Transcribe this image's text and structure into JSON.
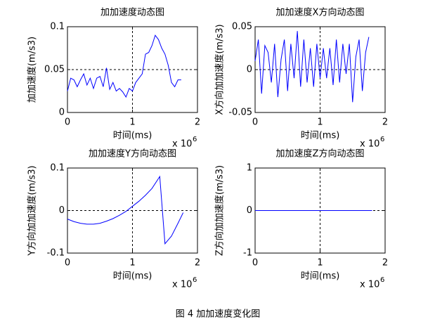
{
  "chart_data": [
    {
      "type": "line",
      "title": "加加速度动态图",
      "x_label": "时间(ms)",
      "y_label": "加加速度(m/s3)",
      "x_multiplier": {
        "base": "x 10",
        "exponent": "6"
      },
      "x": [
        0,
        0.05,
        0.1,
        0.15,
        0.2,
        0.25,
        0.3,
        0.35,
        0.4,
        0.45,
        0.5,
        0.55,
        0.6,
        0.65,
        0.7,
        0.75,
        0.8,
        0.85,
        0.9,
        0.95,
        1.0,
        1.05,
        1.1,
        1.15,
        1.2,
        1.25,
        1.3,
        1.35,
        1.4,
        1.45,
        1.5,
        1.55,
        1.6,
        1.65,
        1.7,
        1.75
      ],
      "series": [
        {
          "color": "#0000ff",
          "values": [
            0.025,
            0.04,
            0.038,
            0.03,
            0.038,
            0.045,
            0.032,
            0.04,
            0.028,
            0.04,
            0.042,
            0.03,
            0.052,
            0.027,
            0.035,
            0.025,
            0.028,
            0.024,
            0.018,
            0.028,
            0.025,
            0.035,
            0.04,
            0.045,
            0.068,
            0.07,
            0.078,
            0.09,
            0.085,
            0.075,
            0.068,
            0.055,
            0.035,
            0.03,
            0.038,
            0.038
          ]
        }
      ],
      "xlim": [
        0,
        2
      ],
      "xticks": [
        0,
        1,
        2
      ],
      "ylim": [
        0,
        0.1
      ],
      "yticks": [
        0,
        0.05,
        0.1
      ],
      "ref_x": 1,
      "ref_y": 0.05
    },
    {
      "type": "line",
      "title": "加加速度X方向动态图",
      "x_label": "时间(ms)",
      "y_label": "X方向加加速度(m/s3)",
      "x_multiplier": {
        "base": "x 10",
        "exponent": "6"
      },
      "x": [
        0,
        0.05,
        0.1,
        0.15,
        0.2,
        0.25,
        0.3,
        0.35,
        0.4,
        0.45,
        0.5,
        0.55,
        0.6,
        0.65,
        0.7,
        0.75,
        0.8,
        0.85,
        0.9,
        0.95,
        1.0,
        1.05,
        1.1,
        1.15,
        1.2,
        1.25,
        1.3,
        1.35,
        1.4,
        1.45,
        1.5,
        1.55,
        1.6,
        1.65,
        1.7,
        1.75
      ],
      "series": [
        {
          "color": "#0000ff",
          "values": [
            0.01,
            0.035,
            -0.028,
            0.028,
            0.02,
            -0.015,
            0.03,
            -0.032,
            0.012,
            0.035,
            -0.025,
            0.03,
            -0.01,
            0.045,
            -0.02,
            0.035,
            -0.015,
            0.025,
            -0.02,
            0.03,
            -0.01,
            0.025,
            -0.01,
            0.025,
            -0.018,
            0.035,
            -0.015,
            0.03,
            -0.005,
            0.03,
            -0.038,
            0.015,
            0.035,
            -0.025,
            0.02,
            0.038
          ]
        }
      ],
      "xlim": [
        0,
        2
      ],
      "xticks": [
        0,
        1,
        2
      ],
      "ylim": [
        -0.05,
        0.05
      ],
      "yticks": [
        -0.05,
        0,
        0.05
      ],
      "ref_x": 1,
      "ref_y": 0
    },
    {
      "type": "line",
      "title": "加加速度Y方向动态图",
      "x_label": "时间(ms)",
      "y_label": "Y方向加加速度(m/s3)",
      "x_multiplier": {
        "base": "x 10",
        "exponent": "6"
      },
      "x": [
        0,
        0.1,
        0.2,
        0.3,
        0.4,
        0.5,
        0.6,
        0.7,
        0.8,
        0.9,
        1.0,
        1.1,
        1.2,
        1.3,
        1.42,
        1.5,
        1.6,
        1.7,
        1.78
      ],
      "series": [
        {
          "color": "#0000ff",
          "values": [
            -0.02,
            -0.026,
            -0.03,
            -0.032,
            -0.032,
            -0.03,
            -0.025,
            -0.019,
            -0.011,
            -0.002,
            0.01,
            0.022,
            0.036,
            0.052,
            0.08,
            -0.078,
            -0.06,
            -0.03,
            -0.005
          ]
        }
      ],
      "xlim": [
        0,
        2
      ],
      "xticks": [
        0,
        1,
        2
      ],
      "ylim": [
        -0.1,
        0.1
      ],
      "yticks": [
        -0.1,
        0,
        0.1
      ],
      "ref_x": 1,
      "ref_y": 0
    },
    {
      "type": "line",
      "title": "加加速度Z方向动态图",
      "x_label": "时间(ms)",
      "y_label": "Z方向加加速度(m/s3)",
      "x_multiplier": {
        "base": "x 10",
        "exponent": "6"
      },
      "x": [
        0,
        1.8
      ],
      "series": [
        {
          "color": "#0000ff",
          "values": [
            0,
            0
          ]
        }
      ],
      "xlim": [
        0,
        2
      ],
      "xticks": [
        0,
        1,
        2
      ],
      "ylim": [
        -1,
        1
      ],
      "yticks": [
        -1,
        0,
        1
      ],
      "ref_x": 1,
      "ref_y": 0
    }
  ],
  "caption": "图 4  加加速度变化图"
}
